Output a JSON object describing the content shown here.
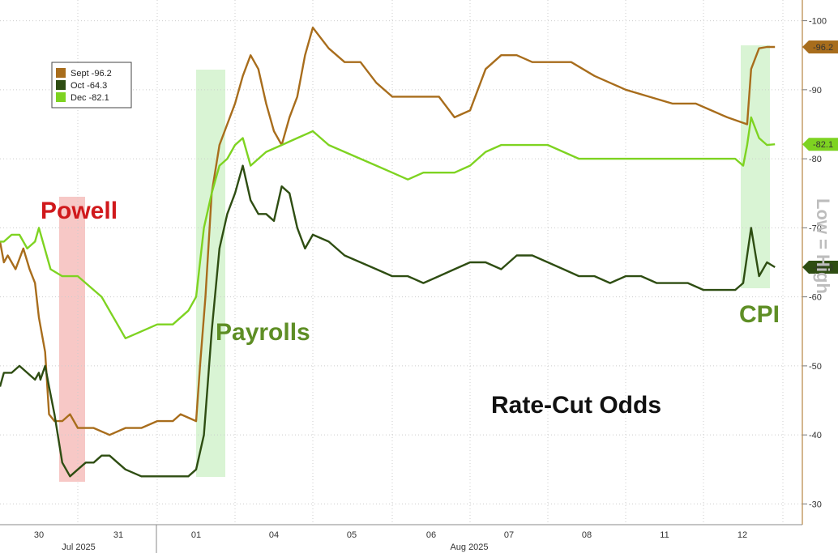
{
  "chart_data": {
    "type": "line",
    "title": "Rate-Cut Odds",
    "ylabel": "Low = High",
    "ylim": [
      27,
      103
    ],
    "y_ticks": [
      "100",
      "90",
      "80",
      "70",
      "60",
      "50",
      "40",
      "30"
    ],
    "x_tick_labels": [
      "30",
      "31",
      "01",
      "04",
      "05",
      "06",
      "07",
      "08",
      "11",
      "12"
    ],
    "x_month_labels": [
      "Jul 2025",
      "Aug 2025"
    ],
    "grid": true,
    "legend_placement": "top-left",
    "series": [
      {
        "name": "Sept",
        "legend_value": "-96.2",
        "axis_label": "96.2",
        "color": "#a86d1c",
        "points": [
          [
            0,
            68
          ],
          [
            0.05,
            65
          ],
          [
            0.1,
            66
          ],
          [
            0.2,
            64
          ],
          [
            0.3,
            67
          ],
          [
            0.38,
            64
          ],
          [
            0.45,
            62
          ],
          [
            0.5,
            57
          ],
          [
            0.58,
            52
          ],
          [
            0.63,
            43
          ],
          [
            0.7,
            42
          ],
          [
            0.8,
            42
          ],
          [
            0.9,
            43
          ],
          [
            1,
            41
          ],
          [
            1.2,
            41
          ],
          [
            1.4,
            40
          ],
          [
            1.6,
            41
          ],
          [
            1.8,
            41
          ],
          [
            2,
            42
          ],
          [
            2.2,
            42
          ],
          [
            2.3,
            43
          ],
          [
            2.5,
            42
          ],
          [
            2.55,
            50
          ],
          [
            2.62,
            60
          ],
          [
            2.7,
            75
          ],
          [
            2.8,
            82
          ],
          [
            2.9,
            85
          ],
          [
            3.0,
            88
          ],
          [
            3.1,
            92
          ],
          [
            3.2,
            95
          ],
          [
            3.3,
            93
          ],
          [
            3.4,
            88
          ],
          [
            3.5,
            84
          ],
          [
            3.6,
            82
          ],
          [
            3.7,
            86
          ],
          [
            3.8,
            89
          ],
          [
            3.9,
            95
          ],
          [
            4.0,
            99
          ],
          [
            4.2,
            96
          ],
          [
            4.4,
            94
          ],
          [
            4.6,
            94
          ],
          [
            4.8,
            91
          ],
          [
            5.0,
            89
          ],
          [
            5.3,
            89
          ],
          [
            5.6,
            89
          ],
          [
            5.8,
            86
          ],
          [
            6.0,
            87
          ],
          [
            6.2,
            93
          ],
          [
            6.4,
            95
          ],
          [
            6.6,
            95
          ],
          [
            6.8,
            94
          ],
          [
            7.0,
            94
          ],
          [
            7.3,
            94
          ],
          [
            7.6,
            92
          ],
          [
            7.8,
            91
          ],
          [
            8.0,
            90
          ],
          [
            8.3,
            89
          ],
          [
            8.6,
            88
          ],
          [
            8.9,
            88
          ],
          [
            9.1,
            87
          ],
          [
            9.3,
            86
          ],
          [
            9.55,
            85
          ],
          [
            9.6,
            93
          ],
          [
            9.7,
            96
          ],
          [
            9.8,
            96.2
          ],
          [
            9.9,
            96.2
          ]
        ]
      },
      {
        "name": "Oct",
        "legend_value": "-64.3",
        "axis_label": "64.3",
        "color": "#2e4d12",
        "points": [
          [
            0,
            47
          ],
          [
            0.05,
            49
          ],
          [
            0.15,
            49
          ],
          [
            0.25,
            50
          ],
          [
            0.35,
            49
          ],
          [
            0.45,
            48
          ],
          [
            0.5,
            49
          ],
          [
            0.52,
            48
          ],
          [
            0.58,
            50
          ],
          [
            0.63,
            47
          ],
          [
            0.7,
            43
          ],
          [
            0.8,
            36
          ],
          [
            0.9,
            34
          ],
          [
            1.0,
            35
          ],
          [
            1.1,
            36
          ],
          [
            1.2,
            36
          ],
          [
            1.3,
            37
          ],
          [
            1.4,
            37
          ],
          [
            1.5,
            36
          ],
          [
            1.6,
            35
          ],
          [
            1.8,
            34
          ],
          [
            2.0,
            34
          ],
          [
            2.2,
            34
          ],
          [
            2.4,
            34
          ],
          [
            2.5,
            35
          ],
          [
            2.6,
            40
          ],
          [
            2.7,
            55
          ],
          [
            2.8,
            67
          ],
          [
            2.9,
            72
          ],
          [
            3.0,
            75
          ],
          [
            3.1,
            79
          ],
          [
            3.2,
            74
          ],
          [
            3.3,
            72
          ],
          [
            3.4,
            72
          ],
          [
            3.5,
            71
          ],
          [
            3.6,
            76
          ],
          [
            3.7,
            75
          ],
          [
            3.8,
            70
          ],
          [
            3.9,
            67
          ],
          [
            4.0,
            69
          ],
          [
            4.2,
            68
          ],
          [
            4.4,
            66
          ],
          [
            4.6,
            65
          ],
          [
            4.8,
            64
          ],
          [
            5.0,
            63
          ],
          [
            5.2,
            63
          ],
          [
            5.4,
            62
          ],
          [
            5.6,
            63
          ],
          [
            5.8,
            64
          ],
          [
            6.0,
            65
          ],
          [
            6.2,
            65
          ],
          [
            6.4,
            64
          ],
          [
            6.6,
            66
          ],
          [
            6.8,
            66
          ],
          [
            7.0,
            65
          ],
          [
            7.2,
            64
          ],
          [
            7.4,
            63
          ],
          [
            7.6,
            63
          ],
          [
            7.8,
            62
          ],
          [
            8.0,
            63
          ],
          [
            8.2,
            63
          ],
          [
            8.4,
            62
          ],
          [
            8.6,
            62
          ],
          [
            8.8,
            62
          ],
          [
            9.0,
            61
          ],
          [
            9.2,
            61
          ],
          [
            9.4,
            61
          ],
          [
            9.5,
            62
          ],
          [
            9.55,
            66
          ],
          [
            9.6,
            70
          ],
          [
            9.7,
            63
          ],
          [
            9.8,
            65
          ],
          [
            9.9,
            64.3
          ]
        ]
      },
      {
        "name": "Dec",
        "legend_value": "-82.1",
        "axis_label": "82.1",
        "color": "#7ed321",
        "points": [
          [
            0,
            68
          ],
          [
            0.05,
            68
          ],
          [
            0.15,
            69
          ],
          [
            0.25,
            69
          ],
          [
            0.35,
            67
          ],
          [
            0.45,
            68
          ],
          [
            0.5,
            70
          ],
          [
            0.55,
            68
          ],
          [
            0.65,
            64
          ],
          [
            0.8,
            63
          ],
          [
            1.0,
            63
          ],
          [
            1.1,
            62
          ],
          [
            1.2,
            61
          ],
          [
            1.3,
            60
          ],
          [
            1.4,
            58
          ],
          [
            1.5,
            56
          ],
          [
            1.6,
            54
          ],
          [
            1.8,
            55
          ],
          [
            2.0,
            56
          ],
          [
            2.2,
            56
          ],
          [
            2.3,
            57
          ],
          [
            2.4,
            58
          ],
          [
            2.5,
            60
          ],
          [
            2.6,
            70
          ],
          [
            2.7,
            75
          ],
          [
            2.8,
            79
          ],
          [
            2.9,
            80
          ],
          [
            3.0,
            82
          ],
          [
            3.1,
            83
          ],
          [
            3.2,
            79
          ],
          [
            3.3,
            80
          ],
          [
            3.4,
            81
          ],
          [
            3.6,
            82
          ],
          [
            3.8,
            83
          ],
          [
            4.0,
            84
          ],
          [
            4.2,
            82
          ],
          [
            4.4,
            81
          ],
          [
            4.6,
            80
          ],
          [
            4.8,
            79
          ],
          [
            5.0,
            78
          ],
          [
            5.2,
            77
          ],
          [
            5.4,
            78
          ],
          [
            5.6,
            78
          ],
          [
            5.8,
            78
          ],
          [
            6.0,
            79
          ],
          [
            6.2,
            81
          ],
          [
            6.4,
            82
          ],
          [
            6.6,
            82
          ],
          [
            6.8,
            82
          ],
          [
            7.0,
            82
          ],
          [
            7.2,
            81
          ],
          [
            7.4,
            80
          ],
          [
            7.6,
            80
          ],
          [
            7.8,
            80
          ],
          [
            8.0,
            80
          ],
          [
            8.2,
            80
          ],
          [
            8.4,
            80
          ],
          [
            8.6,
            80
          ],
          [
            8.8,
            80
          ],
          [
            9.0,
            80
          ],
          [
            9.2,
            80
          ],
          [
            9.4,
            80
          ],
          [
            9.5,
            79
          ],
          [
            9.55,
            82
          ],
          [
            9.6,
            86
          ],
          [
            9.7,
            83
          ],
          [
            9.8,
            82
          ],
          [
            9.9,
            82.1
          ]
        ]
      }
    ],
    "annotations": [
      {
        "label": "Powell",
        "color": "#d0191c"
      },
      {
        "label": "Payrolls",
        "color": "#5e8e25"
      },
      {
        "label": "CPI",
        "color": "#5e8e25"
      }
    ],
    "highlight_colors": {
      "powell": "#f4b6b3",
      "payrolls": "#c9efc2",
      "cpi": "#c9efc2"
    }
  }
}
